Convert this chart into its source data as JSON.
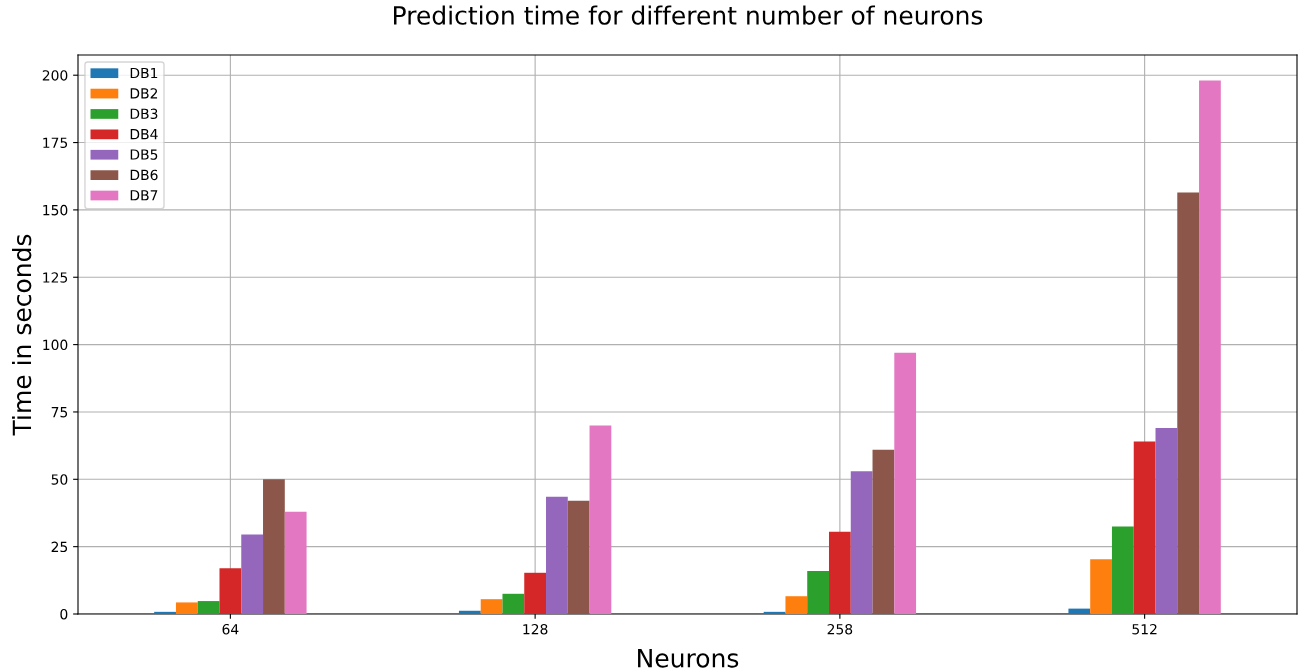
{
  "chart_data": {
    "type": "bar",
    "title": "Prediction time for different number of neurons",
    "xlabel": "Neurons",
    "ylabel": "Time in seconds",
    "categories": [
      "64",
      "128",
      "258",
      "512"
    ],
    "series": [
      {
        "name": "DB1",
        "color": "#1f77b4",
        "values": [
          0.8,
          1.2,
          0.8,
          2
        ]
      },
      {
        "name": "DB2",
        "color": "#ff7f0e",
        "values": [
          4.3,
          5.5,
          6.6,
          20.3
        ]
      },
      {
        "name": "DB3",
        "color": "#2ca02c",
        "values": [
          4.8,
          7.5,
          16,
          32.5
        ]
      },
      {
        "name": "DB4",
        "color": "#d62728",
        "values": [
          17,
          15.3,
          30.5,
          64
        ]
      },
      {
        "name": "DB5",
        "color": "#9467bd",
        "values": [
          29.5,
          43.5,
          53,
          69
        ]
      },
      {
        "name": "DB6",
        "color": "#8c564b",
        "values": [
          50,
          42,
          61,
          156.5
        ]
      },
      {
        "name": "DB7",
        "color": "#e377c2",
        "values": [
          38,
          70,
          97,
          198
        ]
      }
    ],
    "ylim": [
      0,
      207.5
    ],
    "yticks": [
      0,
      25,
      50,
      75,
      100,
      125,
      150,
      175,
      200
    ],
    "grid": true,
    "legend": "top left"
  }
}
